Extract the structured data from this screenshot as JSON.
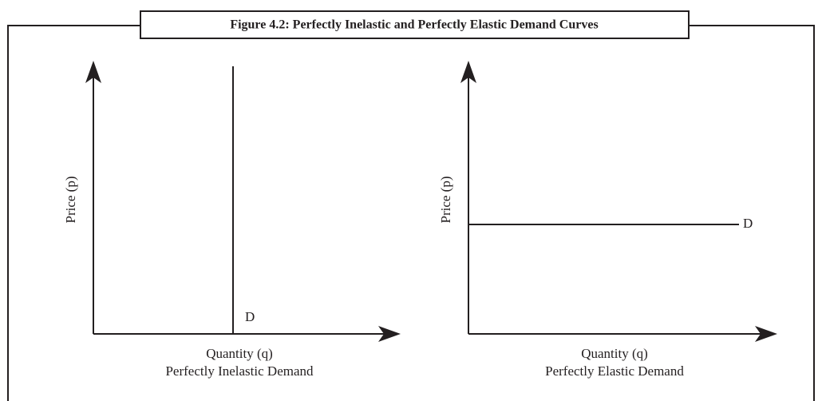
{
  "header": {
    "title": "Figure 4.2: Perfectly Inelastic and Perfectly Elastic Demand Curves"
  },
  "panels": [
    {
      "y_label": "Price (p)",
      "x_label": "Quantity (q)",
      "caption": "Perfectly Inelastic Demand",
      "curve_label": "D"
    },
    {
      "y_label": "Price (p)",
      "x_label": "Quantity (q)",
      "caption": "Perfectly Elastic Demand",
      "curve_label": "D"
    }
  ]
}
